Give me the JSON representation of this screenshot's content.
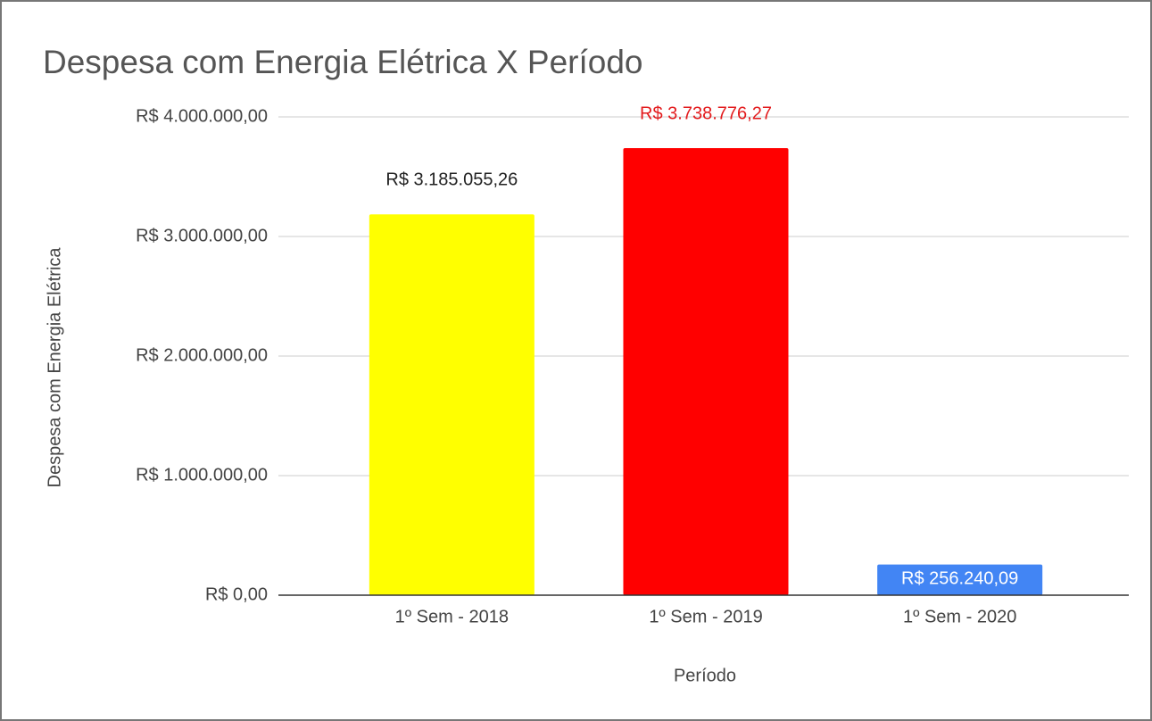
{
  "chart_data": {
    "type": "bar",
    "title": "Despesa com Energia Elétrica X Período",
    "x_label": "Período",
    "y_label": "Despesa com Energia Elétrica",
    "categories": [
      "1º Sem - 2018",
      "1º Sem - 2019",
      "1º Sem - 2020"
    ],
    "values": [
      3185055.26,
      3738776.27,
      256240.09
    ],
    "value_labels": [
      "R$ 3.185.055,26",
      "R$ 3.738.776,27",
      "R$ 256.240,09"
    ],
    "colors": [
      "#ffff00",
      "#ff0000",
      "#4285f4"
    ],
    "value_label_colors": [
      "#222222",
      "#e31a1c",
      "#ffffff"
    ],
    "ylim": [
      0,
      4000000
    ],
    "yticks": [
      {
        "value": 0,
        "label": "R$ 0,00"
      },
      {
        "value": 1000000,
        "label": "R$ 1.000.000,00"
      },
      {
        "value": 2000000,
        "label": "R$ 2.000.000,00"
      },
      {
        "value": 3000000,
        "label": "R$ 3.000.000,00"
      },
      {
        "value": 4000000,
        "label": "R$ 4.000.000,00"
      }
    ],
    "grid": true
  }
}
